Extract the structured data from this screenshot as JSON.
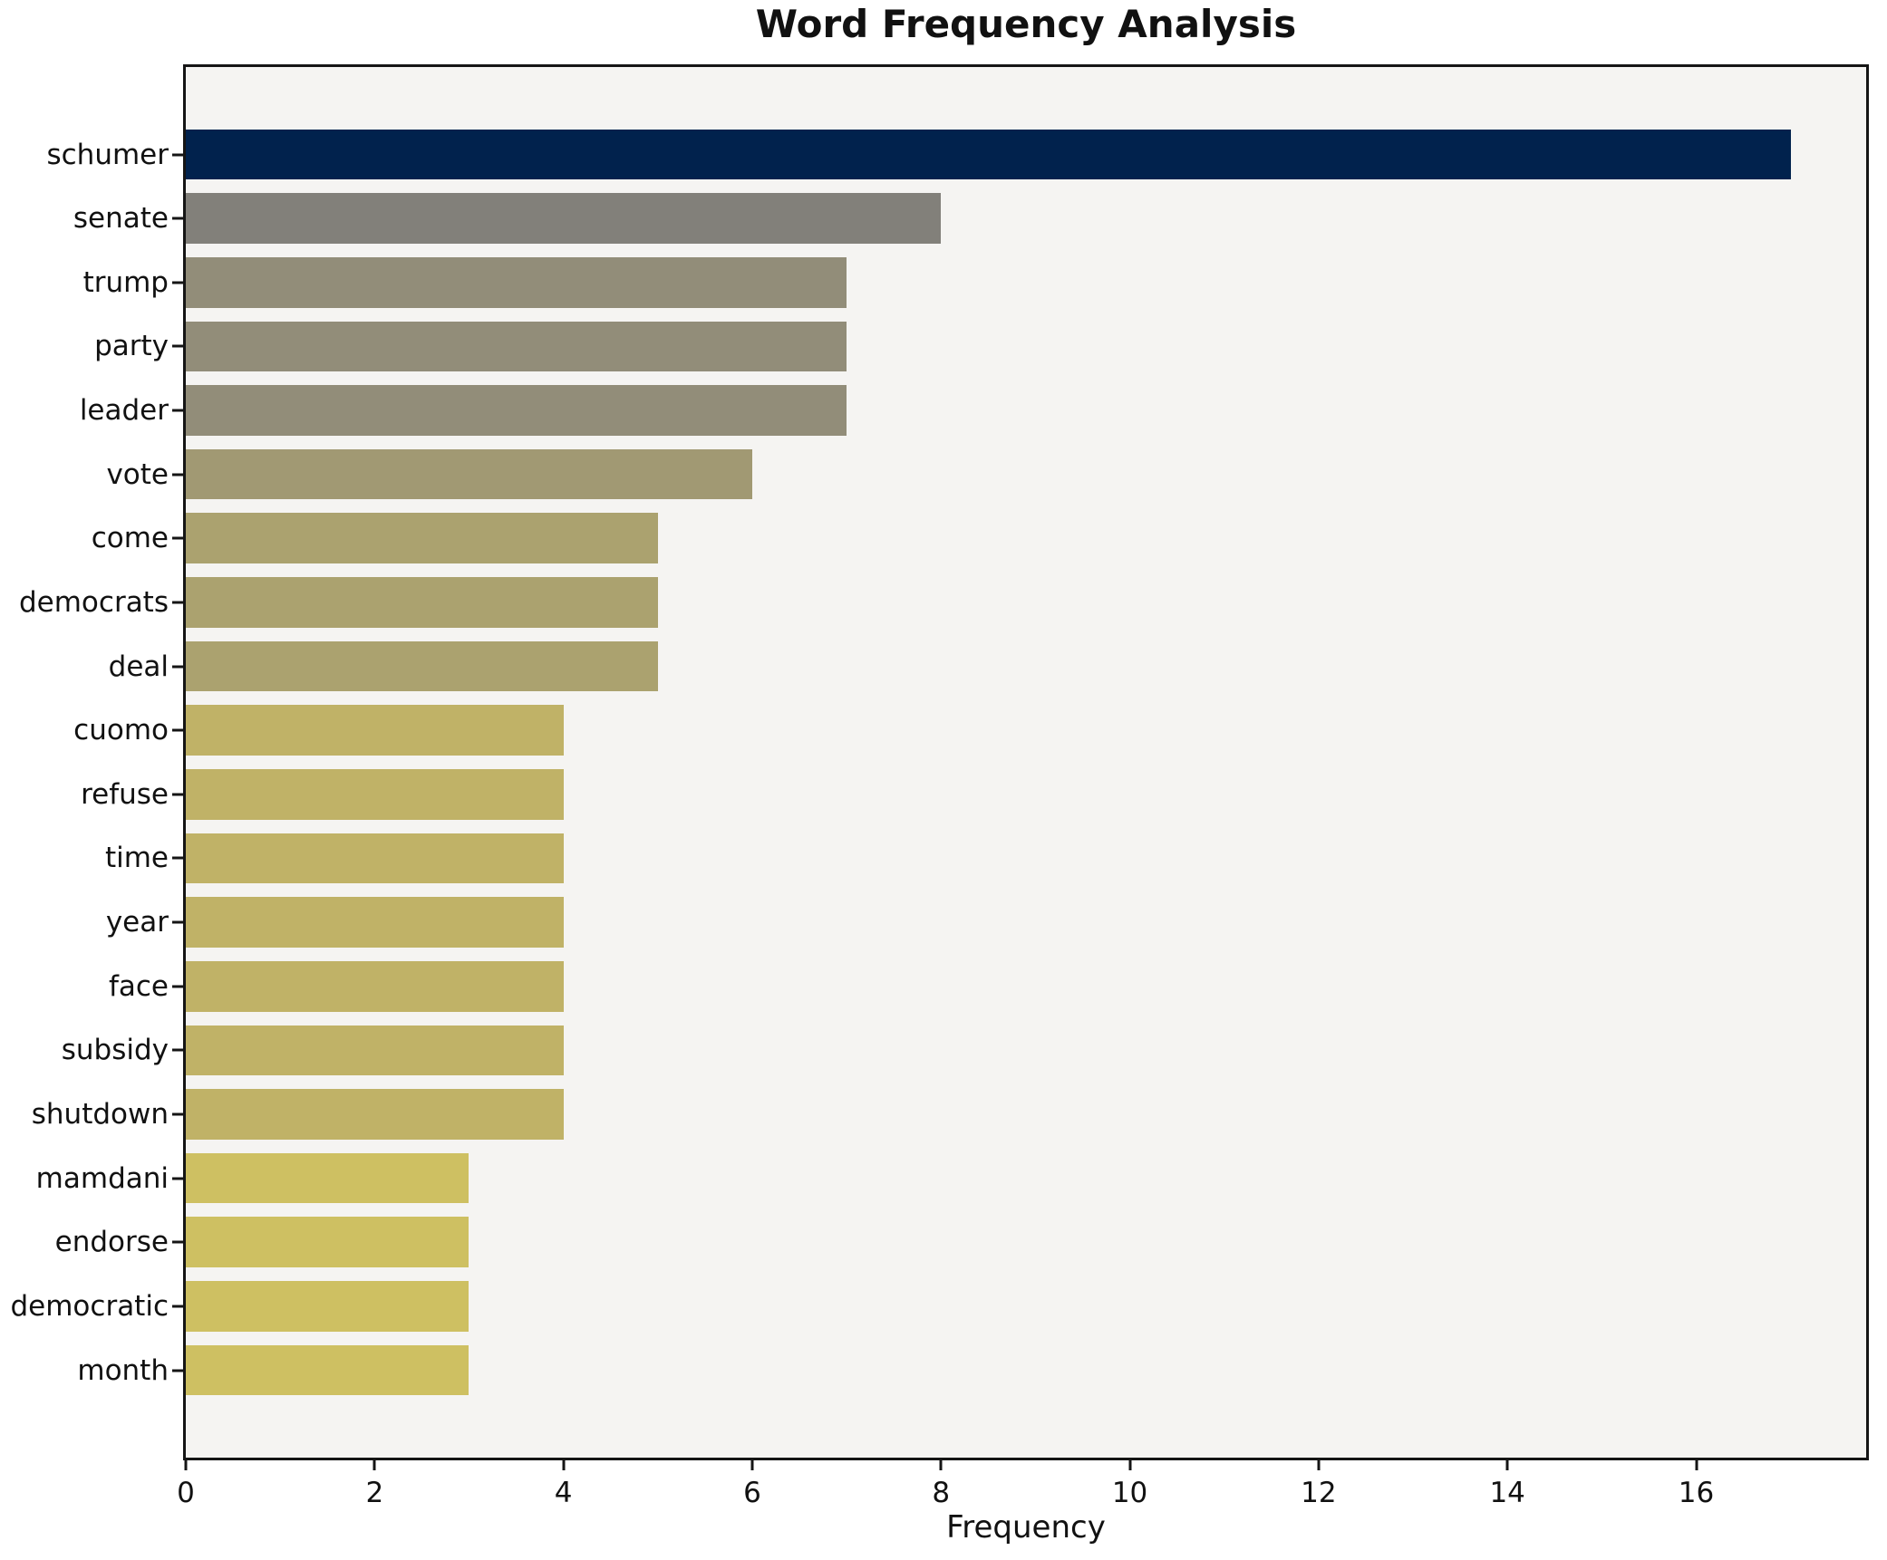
{
  "chart_data": {
    "type": "bar",
    "orientation": "horizontal",
    "title": "Word Frequency Analysis",
    "xlabel": "Frequency",
    "ylabel": "",
    "categories": [
      "schumer",
      "senate",
      "trump",
      "party",
      "leader",
      "vote",
      "come",
      "democrats",
      "deal",
      "cuomo",
      "refuse",
      "time",
      "year",
      "face",
      "subsidy",
      "shutdown",
      "mamdani",
      "endorse",
      "democratic",
      "month"
    ],
    "values": [
      17,
      8,
      7,
      7,
      7,
      6,
      5,
      5,
      5,
      4,
      4,
      4,
      4,
      4,
      4,
      4,
      3,
      3,
      3,
      3
    ],
    "bar_colors": [
      "#01224d",
      "#82807a",
      "#928d79",
      "#928d79",
      "#928d79",
      "#a19973",
      "#aba26f",
      "#aba26f",
      "#aba26f",
      "#c0b267",
      "#c0b267",
      "#c0b267",
      "#c0b267",
      "#c0b267",
      "#c0b267",
      "#c0b267",
      "#cec062",
      "#cec062",
      "#cec062",
      "#cec062"
    ],
    "xlim": [
      0,
      17.8
    ],
    "x_ticks": [
      0,
      2,
      4,
      6,
      8,
      10,
      12,
      14,
      16
    ],
    "grid": false,
    "legend": null,
    "plot_bg": "#f5f4f2",
    "fig_bg": "#ffffff",
    "spine_color": "#151515"
  }
}
